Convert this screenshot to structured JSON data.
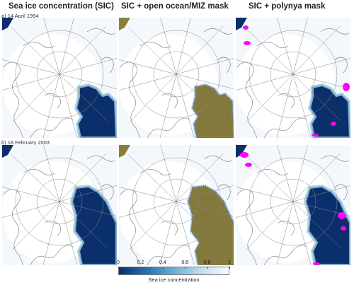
{
  "columns": [
    "Sea ice concentration (SIC)",
    "SIC + open ocean/MIZ mask",
    "SIC + polynya mask"
  ],
  "rows": [
    {
      "label": "a) 14 April 1994"
    },
    {
      "label": "b) 18 February 2003"
    }
  ],
  "colorbar": {
    "label": "Sea ice concentration",
    "ticks": [
      "0",
      "0.2",
      "0.4",
      "0.6",
      "0.8",
      "1"
    ],
    "min_color": "#08306b",
    "max_color": "#f7fbff"
  },
  "mask_colors": {
    "open_ocean_miz": "#8b7d3a",
    "polynya": "#ff00ff"
  }
}
